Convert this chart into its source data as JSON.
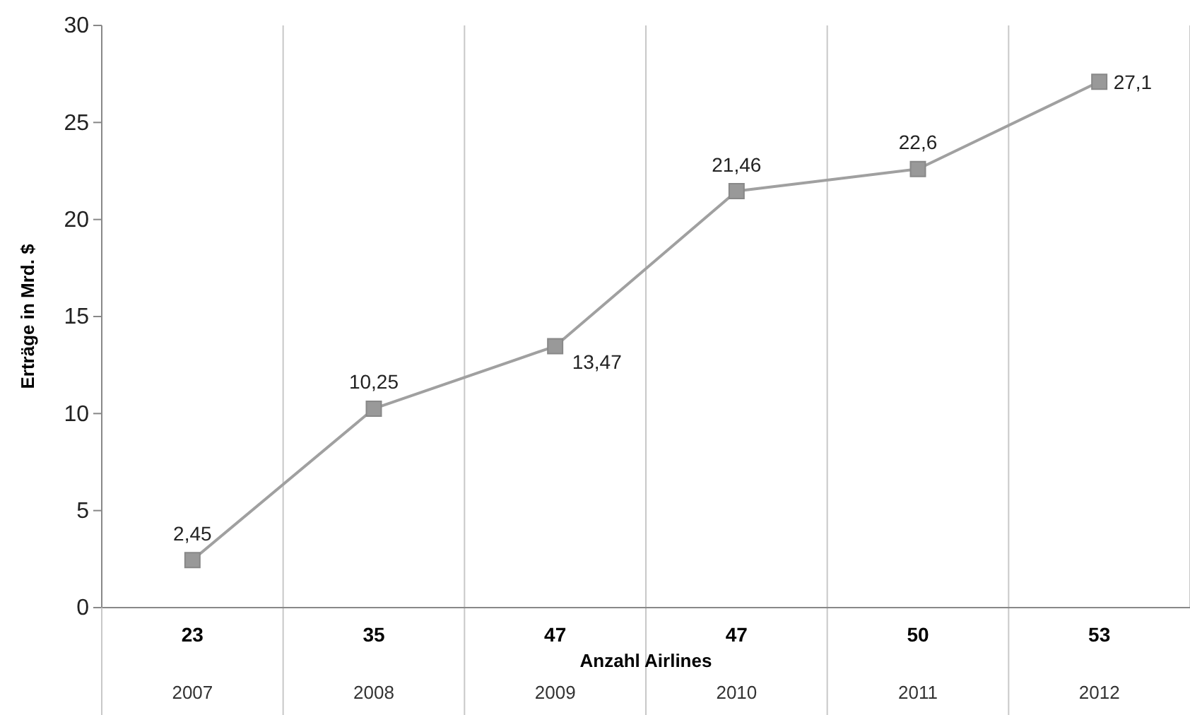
{
  "chart_data": {
    "type": "line",
    "ylabel": "Erträge in Mrd. $",
    "xlabel": "Anzahl Airlines",
    "categories": [
      "2007",
      "2008",
      "2009",
      "2010",
      "2011",
      "2012"
    ],
    "series": [
      {
        "color": "#a0a0a0",
        "values": [
          2.45,
          10.25,
          13.47,
          21.46,
          22.6,
          27.1
        ],
        "value_labels": [
          "2,45",
          "10,25",
          "13,47",
          "21,46",
          "22,6",
          "27,1"
        ]
      }
    ],
    "annotations": [
      "23",
      "35",
      "47",
      "47",
      "50",
      "53"
    ],
    "ylim": [
      0,
      30
    ],
    "yticks": [
      0,
      5,
      10,
      15,
      20,
      25,
      30
    ],
    "grid": "x",
    "marker": "square",
    "line_style": "solid"
  }
}
